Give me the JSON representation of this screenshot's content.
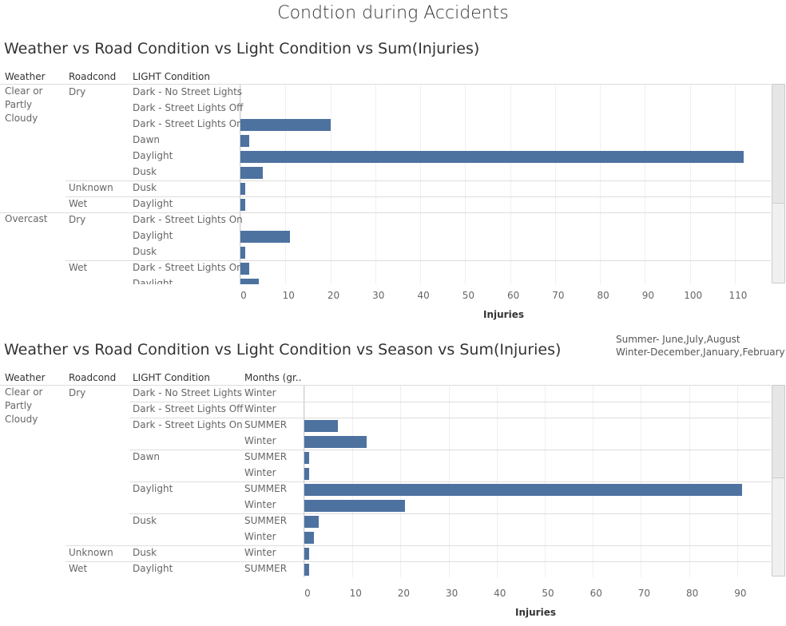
{
  "title": "Condtion during Accidents",
  "chart_data": [
    {
      "type": "bar",
      "title": "Weather vs Road Condition vs Light Condition vs Sum(Injuries)",
      "headers": [
        "Weather",
        "Roadcond",
        "LIGHT Condition"
      ],
      "row_labels": [
        [
          "Clear or Partly Cloudy",
          null,
          null,
          null,
          null,
          null,
          null,
          null,
          "Overcast",
          null,
          null,
          null,
          null
        ],
        [
          "Dry",
          null,
          null,
          null,
          null,
          null,
          "Unknown",
          "Wet",
          "Dry",
          null,
          null,
          "Wet",
          null
        ],
        [
          "Dark - No Street Lights",
          "Dark - Street Lights Off",
          "Dark - Street Lights On",
          "Dawn",
          "Daylight",
          "Dusk",
          "Dusk",
          "Daylight",
          "Dark - Street Lights On",
          "Daylight",
          "Dusk",
          "Dark - Street Lights On",
          "Daylight"
        ]
      ],
      "values": [
        null,
        null,
        20,
        2,
        112,
        5,
        1,
        1,
        null,
        11,
        1,
        2,
        4
      ],
      "color": "#4e72a0",
      "xlim": [
        0,
        118
      ],
      "xticks": [
        0,
        10,
        20,
        30,
        40,
        50,
        60,
        70,
        80,
        90,
        100,
        110
      ],
      "x_label": "Injuries",
      "grid": true
    },
    {
      "type": "bar",
      "title": "Weather vs Road Condition vs Light Condition vs Season vs Sum(Injuries)",
      "annotations": [
        "Summer- June,July,August",
        "Winter-December,January,February"
      ],
      "headers": [
        "Weather",
        "Roadcond",
        "LIGHT Condition",
        "Months (gr.."
      ],
      "row_labels": [
        [
          "Clear or Partly Cloudy",
          null,
          null,
          null,
          null,
          null,
          null,
          null,
          null,
          null,
          null,
          null
        ],
        [
          "Dry",
          null,
          null,
          null,
          null,
          null,
          null,
          null,
          null,
          null,
          "Unknown",
          "Wet"
        ],
        [
          "Dark - No Street Lights",
          "Dark - Street Lights Off",
          "Dark - Street Lights On",
          null,
          "Dawn",
          null,
          "Daylight",
          null,
          "Dusk",
          null,
          "Dusk",
          "Daylight"
        ],
        [
          "Winter",
          "Winter",
          "SUMMER",
          "Winter",
          "SUMMER",
          "Winter",
          "SUMMER",
          "Winter",
          "SUMMER",
          "Winter",
          "Winter",
          "SUMMER"
        ]
      ],
      "values": [
        null,
        null,
        7,
        13,
        1,
        1,
        91,
        21,
        3,
        2,
        1,
        1
      ],
      "color": "#4e72a0",
      "xlim": [
        0,
        97
      ],
      "xticks": [
        0,
        10,
        20,
        30,
        40,
        50,
        60,
        70,
        80,
        90
      ],
      "x_label": "Injuries",
      "grid": true
    }
  ]
}
